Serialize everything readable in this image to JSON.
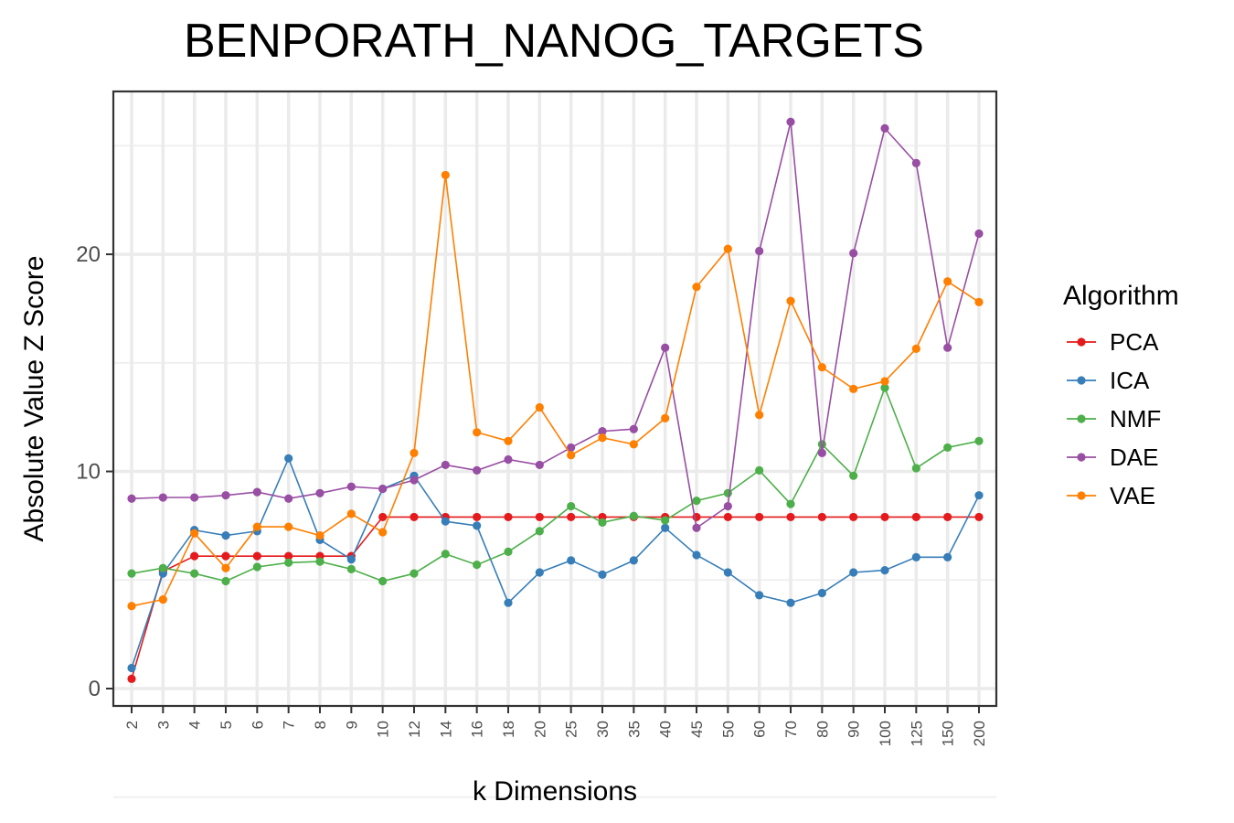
{
  "chart_data": {
    "type": "line",
    "title": "BENPORATH_NANOG_TARGETS",
    "xlabel": "k Dimensions",
    "ylabel": "Absolute Value Z Score",
    "categories": [
      "2",
      "3",
      "4",
      "5",
      "6",
      "7",
      "8",
      "9",
      "10",
      "12",
      "14",
      "16",
      "18",
      "20",
      "25",
      "30",
      "35",
      "40",
      "45",
      "50",
      "60",
      "70",
      "80",
      "90",
      "100",
      "125",
      "150",
      "200"
    ],
    "ylim": [
      -0.8,
      27.5
    ],
    "yticks": [
      "0",
      "10",
      "20"
    ],
    "grid": true,
    "legend": {
      "title": "Algorithm",
      "placement": "right"
    },
    "series": [
      {
        "name": "PCA",
        "color": "#e41a1c",
        "values": [
          0.45,
          5.4,
          6.1,
          6.1,
          6.1,
          6.1,
          6.1,
          6.1,
          7.9,
          7.9,
          7.9,
          7.9,
          7.9,
          7.9,
          7.9,
          7.9,
          7.9,
          7.9,
          7.9,
          7.9,
          7.9,
          7.9,
          7.9,
          7.9,
          7.9,
          7.9,
          7.9,
          7.9
        ]
      },
      {
        "name": "ICA",
        "color": "#377eb8",
        "values": [
          0.95,
          5.3,
          7.3,
          7.05,
          7.25,
          10.6,
          6.85,
          5.95,
          9.2,
          9.8,
          7.7,
          7.5,
          3.95,
          5.35,
          5.9,
          5.25,
          5.9,
          7.4,
          6.15,
          5.35,
          4.3,
          3.95,
          4.4,
          5.35,
          5.45,
          6.05,
          6.05,
          8.9
        ]
      },
      {
        "name": "NMF",
        "color": "#4daf4a",
        "values": [
          5.3,
          5.55,
          5.3,
          4.95,
          5.6,
          5.8,
          5.85,
          5.5,
          4.95,
          5.3,
          6.2,
          5.7,
          6.3,
          7.25,
          8.4,
          7.65,
          7.95,
          7.75,
          8.65,
          9.0,
          10.05,
          8.5,
          11.25,
          9.8,
          13.85,
          10.15,
          11.1,
          11.4
        ]
      },
      {
        "name": "DAE",
        "color": "#984ea3",
        "values": [
          8.75,
          8.8,
          8.8,
          8.9,
          9.05,
          8.75,
          9.0,
          9.3,
          9.2,
          9.6,
          10.3,
          10.05,
          10.55,
          10.3,
          11.1,
          11.85,
          11.95,
          15.7,
          7.4,
          8.4,
          20.15,
          26.1,
          10.85,
          20.05,
          25.8,
          24.2,
          15.7,
          20.95
        ]
      },
      {
        "name": "VAE",
        "color": "#ff7f00",
        "values": [
          3.8,
          4.1,
          7.15,
          5.55,
          7.45,
          7.45,
          7.05,
          8.05,
          7.2,
          10.85,
          23.65,
          11.8,
          11.4,
          12.95,
          10.75,
          11.55,
          11.25,
          12.45,
          18.5,
          20.25,
          12.6,
          17.85,
          14.8,
          13.8,
          14.15,
          15.65,
          18.75,
          17.8
        ]
      }
    ]
  }
}
